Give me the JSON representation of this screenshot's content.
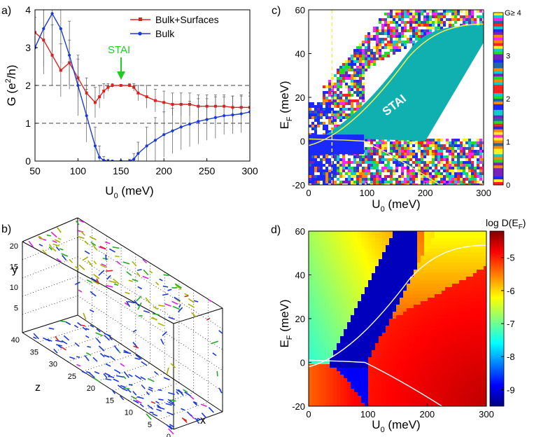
{
  "chart_data": [
    {
      "panel_label": "a)",
      "type": "line",
      "xlabel": "U",
      "xlabel_sub": "0",
      "xlabel_unit": " (meV)",
      "ylabel": "G (e",
      "ylabel_sup": "2",
      "ylabel_unit": "/h)",
      "xlim": [
        50,
        300
      ],
      "ylim": [
        0,
        4
      ],
      "xticks": [
        "50",
        "100",
        "150",
        "200",
        "250",
        "300"
      ],
      "yticks": [
        "0",
        "1",
        "2",
        "3",
        "4"
      ],
      "dashed_levels": [
        2,
        1
      ],
      "annotation": {
        "text": "STAI",
        "x": 150,
        "y": 2.1,
        "color": "#22cc22"
      },
      "x": [
        50,
        60,
        70,
        80,
        90,
        100,
        110,
        120,
        125,
        130,
        135,
        140,
        150,
        160,
        165,
        170,
        180,
        190,
        200,
        210,
        220,
        230,
        240,
        250,
        260,
        270,
        280,
        290,
        300
      ],
      "series": [
        {
          "name": "Bulk+Surfaces",
          "color": "#e02020",
          "values": [
            3.4,
            3.2,
            2.8,
            2.4,
            2.6,
            2.2,
            1.8,
            1.55,
            1.7,
            1.85,
            1.95,
            2.0,
            2.0,
            2.0,
            1.95,
            1.8,
            1.7,
            1.6,
            1.55,
            1.5,
            1.5,
            1.5,
            1.45,
            1.45,
            1.45,
            1.45,
            1.42,
            1.42,
            1.42
          ],
          "errors": [
            0.6,
            0.9,
            0.8,
            0.7,
            0.6,
            0.5,
            0.4,
            0.4,
            0.3,
            0.2,
            0.1,
            0.05,
            0.02,
            0.05,
            0.1,
            0.2,
            0.3,
            0.3,
            0.3,
            0.3,
            0.3,
            0.3,
            0.3,
            0.3,
            0.3,
            0.3,
            0.3,
            0.3,
            0.3
          ]
        },
        {
          "name": "Bulk",
          "color": "#1a3ad8",
          "values": [
            3.0,
            3.5,
            3.9,
            3.5,
            2.8,
            2.0,
            1.2,
            0.4,
            0.1,
            0.02,
            0.0,
            0.0,
            0.0,
            0.0,
            0.05,
            0.2,
            0.4,
            0.55,
            0.7,
            0.8,
            0.9,
            0.98,
            1.05,
            1.1,
            1.15,
            1.2,
            1.22,
            1.25,
            1.3
          ],
          "errors": [
            0.8,
            1.0,
            1.0,
            0.9,
            0.9,
            0.8,
            0.7,
            0.5,
            0.3,
            0.1,
            0.05,
            0.02,
            0.02,
            0.05,
            0.15,
            0.3,
            0.5,
            0.6,
            0.6,
            0.6,
            0.6,
            0.6,
            0.6,
            0.55,
            0.55,
            0.5,
            0.5,
            0.5,
            0.5
          ]
        }
      ]
    },
    {
      "panel_label": "b)",
      "type": "other",
      "description_free": true,
      "x_axis_label": "x",
      "y_axis_label": "y",
      "z_axis_label": "z",
      "y_ticks": [
        "5",
        "10",
        "15",
        "20"
      ],
      "z_ticks": [
        "0",
        "5",
        "10",
        "15",
        "20",
        "25",
        "30",
        "35",
        "40"
      ]
    },
    {
      "panel_label": "c)",
      "type": "heatmap",
      "xlabel": "U",
      "xlabel_sub": "0",
      "xlabel_unit": " (meV)",
      "ylabel": "E",
      "ylabel_sub": "F",
      "ylabel_unit": " (meV)",
      "xlim": [
        0,
        300
      ],
      "ylim": [
        -20,
        60
      ],
      "xticks": [
        "0",
        "100",
        "200",
        "300"
      ],
      "yticks": [
        "-20",
        "0",
        "20",
        "40",
        "60"
      ],
      "region_label": "STAI",
      "region_color": "#10b0b0",
      "colorbar_ticks": [
        "0",
        "1",
        "2",
        "3"
      ],
      "colorbar_top_label": "G≥ 4",
      "dashed_line_x": 40
    },
    {
      "panel_label": "d)",
      "type": "heatmap",
      "title": "log D(E",
      "title_sub": "F",
      "title_end": ")",
      "xlabel": "U",
      "xlabel_sub": "0",
      "xlabel_unit": " (meV)",
      "ylabel": "E",
      "ylabel_sub": "F",
      "ylabel_unit": " (meV)",
      "xlim": [
        0,
        300
      ],
      "ylim": [
        -20,
        60
      ],
      "xticks": [
        "0",
        "100",
        "200",
        "300"
      ],
      "yticks": [
        "-20",
        "0",
        "20",
        "40",
        "60"
      ],
      "colorbar_range": [
        -9.5,
        -4.2
      ],
      "colorbar_ticks": [
        "-5",
        "-6",
        "-7",
        "-8",
        "-9"
      ]
    }
  ]
}
